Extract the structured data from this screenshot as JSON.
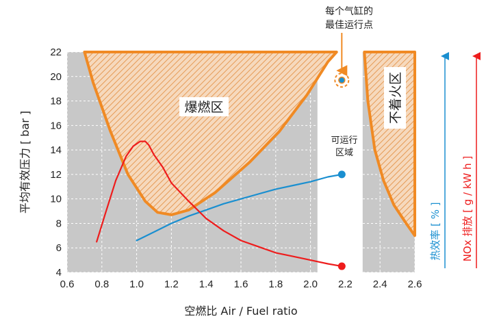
{
  "chart_data": {
    "type": "line",
    "xlabel": "空燃比 Air / Fuel ratio",
    "ylabel": "平均有效压力 [ bar ]",
    "xlim": [
      0.6,
      2.6
    ],
    "ylim": [
      4,
      22
    ],
    "x_ticks": [
      "0.6",
      "0.8",
      "1.0",
      "1.2",
      "1.4",
      "1.6",
      "1.8",
      "2.0",
      "2.2",
      "2.4",
      "2.6"
    ],
    "y_ticks": [
      "4",
      "6",
      "8",
      "10",
      "12",
      "14",
      "16",
      "18",
      "20",
      "22"
    ],
    "grid": true,
    "regions": {
      "knock": {
        "label": "爆燃区",
        "boundary": [
          [
            0.7,
            22
          ],
          [
            0.75,
            19.5
          ],
          [
            0.85,
            15.5
          ],
          [
            0.95,
            12
          ],
          [
            1.05,
            9.8
          ],
          [
            1.12,
            8.9
          ],
          [
            1.2,
            8.7
          ],
          [
            1.3,
            9.1
          ],
          [
            1.45,
            10.5
          ],
          [
            1.65,
            13
          ],
          [
            1.82,
            15.5
          ],
          [
            1.98,
            18.5
          ],
          [
            2.1,
            21.2
          ],
          [
            2.15,
            22
          ]
        ]
      },
      "misfire": {
        "label": "不着火区",
        "boundary": [
          [
            2.31,
            22
          ],
          [
            2.33,
            18
          ],
          [
            2.37,
            14
          ],
          [
            2.42,
            11.5
          ],
          [
            2.48,
            9.5
          ],
          [
            2.55,
            8
          ],
          [
            2.6,
            7
          ]
        ]
      },
      "operable": {
        "label_line1": "可运行",
        "label_line2": "区域",
        "x_range": [
          2.04,
          2.3
        ]
      }
    },
    "optimum_point": {
      "label_line1": "每个气缸的",
      "label_line2": "最佳运行点",
      "x": 2.18,
      "y": 19.7
    },
    "series": [
      {
        "name": "热效率 [ % ]",
        "color": "#1a8fd0",
        "x": [
          1.0,
          1.1,
          1.2,
          1.3,
          1.4,
          1.5,
          1.6,
          1.7,
          1.8,
          1.9,
          2.0,
          2.1,
          2.18
        ],
        "y": [
          6.6,
          7.3,
          8.0,
          8.6,
          9.1,
          9.6,
          10.0,
          10.4,
          10.8,
          11.1,
          11.4,
          11.8,
          12.0
        ]
      },
      {
        "name": "NOx 排放 [ g / kW h ]",
        "color": "#ee1c1c",
        "x": [
          0.77,
          0.82,
          0.88,
          0.94,
          0.98,
          1.02,
          1.05,
          1.07,
          1.1,
          1.15,
          1.2,
          1.3,
          1.4,
          1.5,
          1.6,
          1.7,
          1.8,
          1.9,
          2.0,
          2.1,
          2.18
        ],
        "y": [
          6.5,
          8.8,
          11.5,
          13.5,
          14.3,
          14.7,
          14.7,
          14.4,
          13.6,
          12.6,
          11.3,
          9.8,
          8.4,
          7.4,
          6.6,
          6.1,
          5.6,
          5.3,
          5.0,
          4.7,
          4.5
        ]
      }
    ]
  }
}
